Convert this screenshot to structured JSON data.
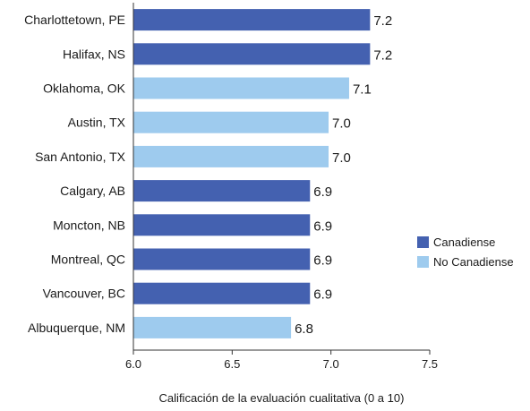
{
  "chart_data": {
    "type": "bar",
    "orientation": "horizontal",
    "categories": [
      "Charlottetown, PE",
      "Halifax, NS",
      "Oklahoma, OK",
      "Austin, TX",
      "San Antonio, TX",
      "Calgary, AB",
      "Moncton, NB",
      "Montreal, QC",
      "Vancouver, BC",
      "Albuquerque, NM"
    ],
    "values": [
      7.2,
      7.2,
      7.1,
      7.0,
      7.0,
      6.9,
      6.9,
      6.9,
      6.9,
      6.8
    ],
    "value_labels": [
      "7.2",
      "7.2",
      "7.1",
      "7.0",
      "7.0",
      "6.9",
      "6.9",
      "6.9",
      "6.9",
      "6.8"
    ],
    "bar_values": [
      7.198,
      7.198,
      7.092,
      6.988,
      6.988,
      6.894,
      6.894,
      6.894,
      6.894,
      6.798
    ],
    "groups": [
      "Canadiense",
      "Canadiense",
      "No Canadiense",
      "No Canadiense",
      "No Canadiense",
      "Canadiense",
      "Canadiense",
      "Canadiense",
      "Canadiense",
      "No Canadiense"
    ],
    "series": [
      {
        "name": "Canadiense",
        "color": "#4461b0"
      },
      {
        "name": "No Canadiense",
        "color": "#9ecbee"
      }
    ],
    "xlabel": "Calificación de la evaluación cualitativa (0 a 10)",
    "xlim": [
      6.0,
      7.5
    ],
    "xticks": [
      "6.0",
      "6.5",
      "7.0",
      "7.5"
    ],
    "grid": false,
    "legend_position": "right"
  }
}
